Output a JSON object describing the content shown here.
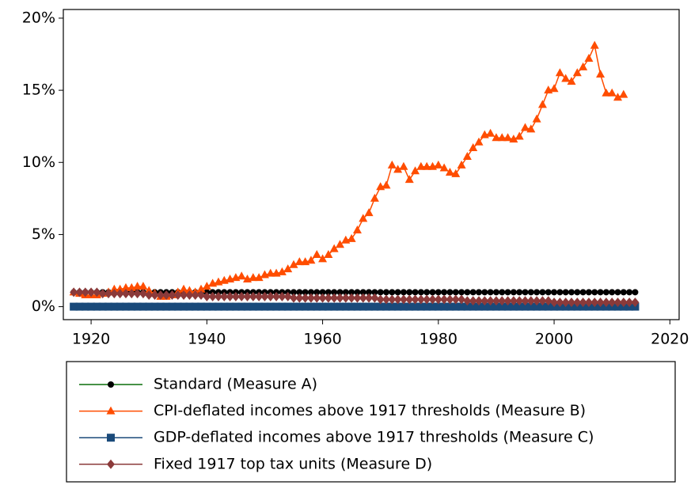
{
  "chart_data": {
    "type": "line",
    "x": [
      1917,
      1918,
      1919,
      1920,
      1921,
      1922,
      1923,
      1924,
      1925,
      1926,
      1927,
      1928,
      1929,
      1930,
      1931,
      1932,
      1933,
      1934,
      1935,
      1936,
      1937,
      1938,
      1939,
      1940,
      1941,
      1942,
      1943,
      1944,
      1945,
      1946,
      1947,
      1948,
      1949,
      1950,
      1951,
      1952,
      1953,
      1954,
      1955,
      1956,
      1957,
      1958,
      1959,
      1960,
      1961,
      1962,
      1963,
      1964,
      1965,
      1966,
      1967,
      1968,
      1969,
      1970,
      1971,
      1972,
      1973,
      1974,
      1975,
      1976,
      1977,
      1978,
      1979,
      1980,
      1981,
      1982,
      1983,
      1984,
      1985,
      1986,
      1987,
      1988,
      1989,
      1990,
      1991,
      1992,
      1993,
      1994,
      1995,
      1996,
      1997,
      1998,
      1999,
      2000,
      2001,
      2002,
      2003,
      2004,
      2005,
      2006,
      2007,
      2008,
      2009,
      2010,
      2011,
      2012,
      2013,
      2014
    ],
    "series": [
      {
        "name": "Standard (Measure A)",
        "color": "#0a6e0a",
        "marker_color": "#000000",
        "marker": "circle",
        "values": [
          1,
          1,
          1,
          1,
          1,
          1,
          1,
          1,
          1,
          1,
          1,
          1,
          1,
          1,
          1,
          1,
          1,
          1,
          1,
          1,
          1,
          1,
          1,
          1,
          1,
          1,
          1,
          1,
          1,
          1,
          1,
          1,
          1,
          1,
          1,
          1,
          1,
          1,
          1,
          1,
          1,
          1,
          1,
          1,
          1,
          1,
          1,
          1,
          1,
          1,
          1,
          1,
          1,
          1,
          1,
          1,
          1,
          1,
          1,
          1,
          1,
          1,
          1,
          1,
          1,
          1,
          1,
          1,
          1,
          1,
          1,
          1,
          1,
          1,
          1,
          1,
          1,
          1,
          1,
          1,
          1,
          1,
          1,
          1,
          1,
          1,
          1,
          1,
          1,
          1,
          1,
          1,
          1,
          1,
          1,
          1,
          1,
          1
        ]
      },
      {
        "name": "CPI-deflated incomes above 1917 thresholds (Measure B)",
        "color": "#ff4d00",
        "marker_color": "#ff4d00",
        "marker": "triangle",
        "values": [
          1.0,
          0.9,
          0.8,
          0.8,
          0.8,
          0.9,
          1.0,
          1.2,
          1.2,
          1.3,
          1.3,
          1.4,
          1.4,
          1.1,
          0.9,
          0.7,
          0.7,
          0.8,
          1.0,
          1.2,
          1.1,
          1.0,
          1.2,
          1.4,
          1.6,
          1.7,
          1.8,
          1.9,
          2.0,
          2.1,
          1.9,
          2.0,
          2.0,
          2.2,
          2.3,
          2.3,
          2.4,
          2.6,
          2.9,
          3.1,
          3.1,
          3.2,
          3.6,
          3.3,
          3.6,
          4.0,
          4.3,
          4.6,
          4.7,
          5.3,
          6.1,
          6.5,
          7.5,
          8.3,
          8.4,
          9.8,
          9.5,
          9.7,
          8.8,
          9.4,
          9.7,
          9.7,
          9.7,
          9.8,
          9.6,
          9.3,
          9.2,
          9.8,
          10.4,
          11.0,
          11.4,
          11.9,
          12.0,
          11.7,
          11.7,
          11.7,
          11.6,
          11.8,
          12.4,
          12.3,
          13.0,
          14.0,
          15.0,
          15.1,
          16.2,
          15.8,
          15.6,
          16.2,
          16.6,
          17.2,
          18.1,
          16.1,
          14.8,
          14.8,
          14.5,
          14.7,
          null,
          null
        ]
      },
      {
        "name": "GDP-deflated incomes above 1917 thresholds (Measure C)",
        "color": "#1a4a7a",
        "marker_color": "#1a4a7a",
        "marker": "square",
        "values": [
          0,
          0,
          0,
          0,
          0,
          0,
          0,
          0,
          0,
          0,
          0,
          0,
          0,
          0,
          0,
          0,
          0,
          0,
          0,
          0,
          0,
          0,
          0,
          0,
          0,
          0,
          0,
          0,
          0,
          0,
          0,
          0,
          0,
          0,
          0,
          0,
          0,
          0,
          0,
          0,
          0,
          0,
          0,
          0,
          0,
          0,
          0,
          0,
          0,
          0,
          0,
          0,
          0,
          0,
          0,
          0,
          0,
          0,
          0,
          0,
          0,
          0,
          0,
          0,
          0,
          0,
          0,
          0,
          0,
          0,
          0,
          0,
          0,
          0,
          0,
          0,
          0,
          0,
          0,
          0,
          0,
          0,
          0,
          0,
          0,
          0,
          0,
          0,
          0,
          0,
          0,
          0,
          0,
          0,
          0,
          0,
          0,
          0
        ]
      },
      {
        "name": "Fixed 1917 top tax units (Measure D)",
        "color": "#8b3a3a",
        "marker_color": "#8b3a3a",
        "marker": "diamond",
        "values": [
          1.0,
          1.0,
          1.0,
          1.0,
          1.0,
          0.9,
          0.9,
          0.9,
          0.9,
          0.9,
          0.9,
          0.9,
          0.9,
          0.8,
          0.8,
          0.8,
          0.8,
          0.8,
          0.8,
          0.8,
          0.8,
          0.8,
          0.8,
          0.7,
          0.7,
          0.7,
          0.7,
          0.7,
          0.7,
          0.7,
          0.7,
          0.7,
          0.7,
          0.7,
          0.7,
          0.7,
          0.7,
          0.7,
          0.6,
          0.6,
          0.6,
          0.6,
          0.6,
          0.6,
          0.6,
          0.6,
          0.6,
          0.6,
          0.6,
          0.6,
          0.6,
          0.6,
          0.6,
          0.5,
          0.5,
          0.5,
          0.5,
          0.5,
          0.5,
          0.5,
          0.5,
          0.5,
          0.5,
          0.5,
          0.5,
          0.5,
          0.5,
          0.5,
          0.4,
          0.4,
          0.4,
          0.4,
          0.4,
          0.4,
          0.4,
          0.4,
          0.4,
          0.4,
          0.4,
          0.4,
          0.4,
          0.4,
          0.4,
          0.3,
          0.3,
          0.3,
          0.3,
          0.3,
          0.3,
          0.3,
          0.3,
          0.3,
          0.3,
          0.3,
          0.3,
          0.3,
          0.3,
          0.3
        ]
      }
    ],
    "xlim": [
      1915.2,
      2021.6
    ],
    "ylim": [
      -0.9,
      20.6
    ],
    "xticks": [
      1920,
      1940,
      1960,
      1980,
      2000,
      2020
    ],
    "yticks": [
      {
        "value": 0,
        "label": "0%"
      },
      {
        "value": 5,
        "label": "5%"
      },
      {
        "value": 10,
        "label": "10%"
      },
      {
        "value": 15,
        "label": "15%"
      },
      {
        "value": 20,
        "label": "20%"
      }
    ]
  }
}
